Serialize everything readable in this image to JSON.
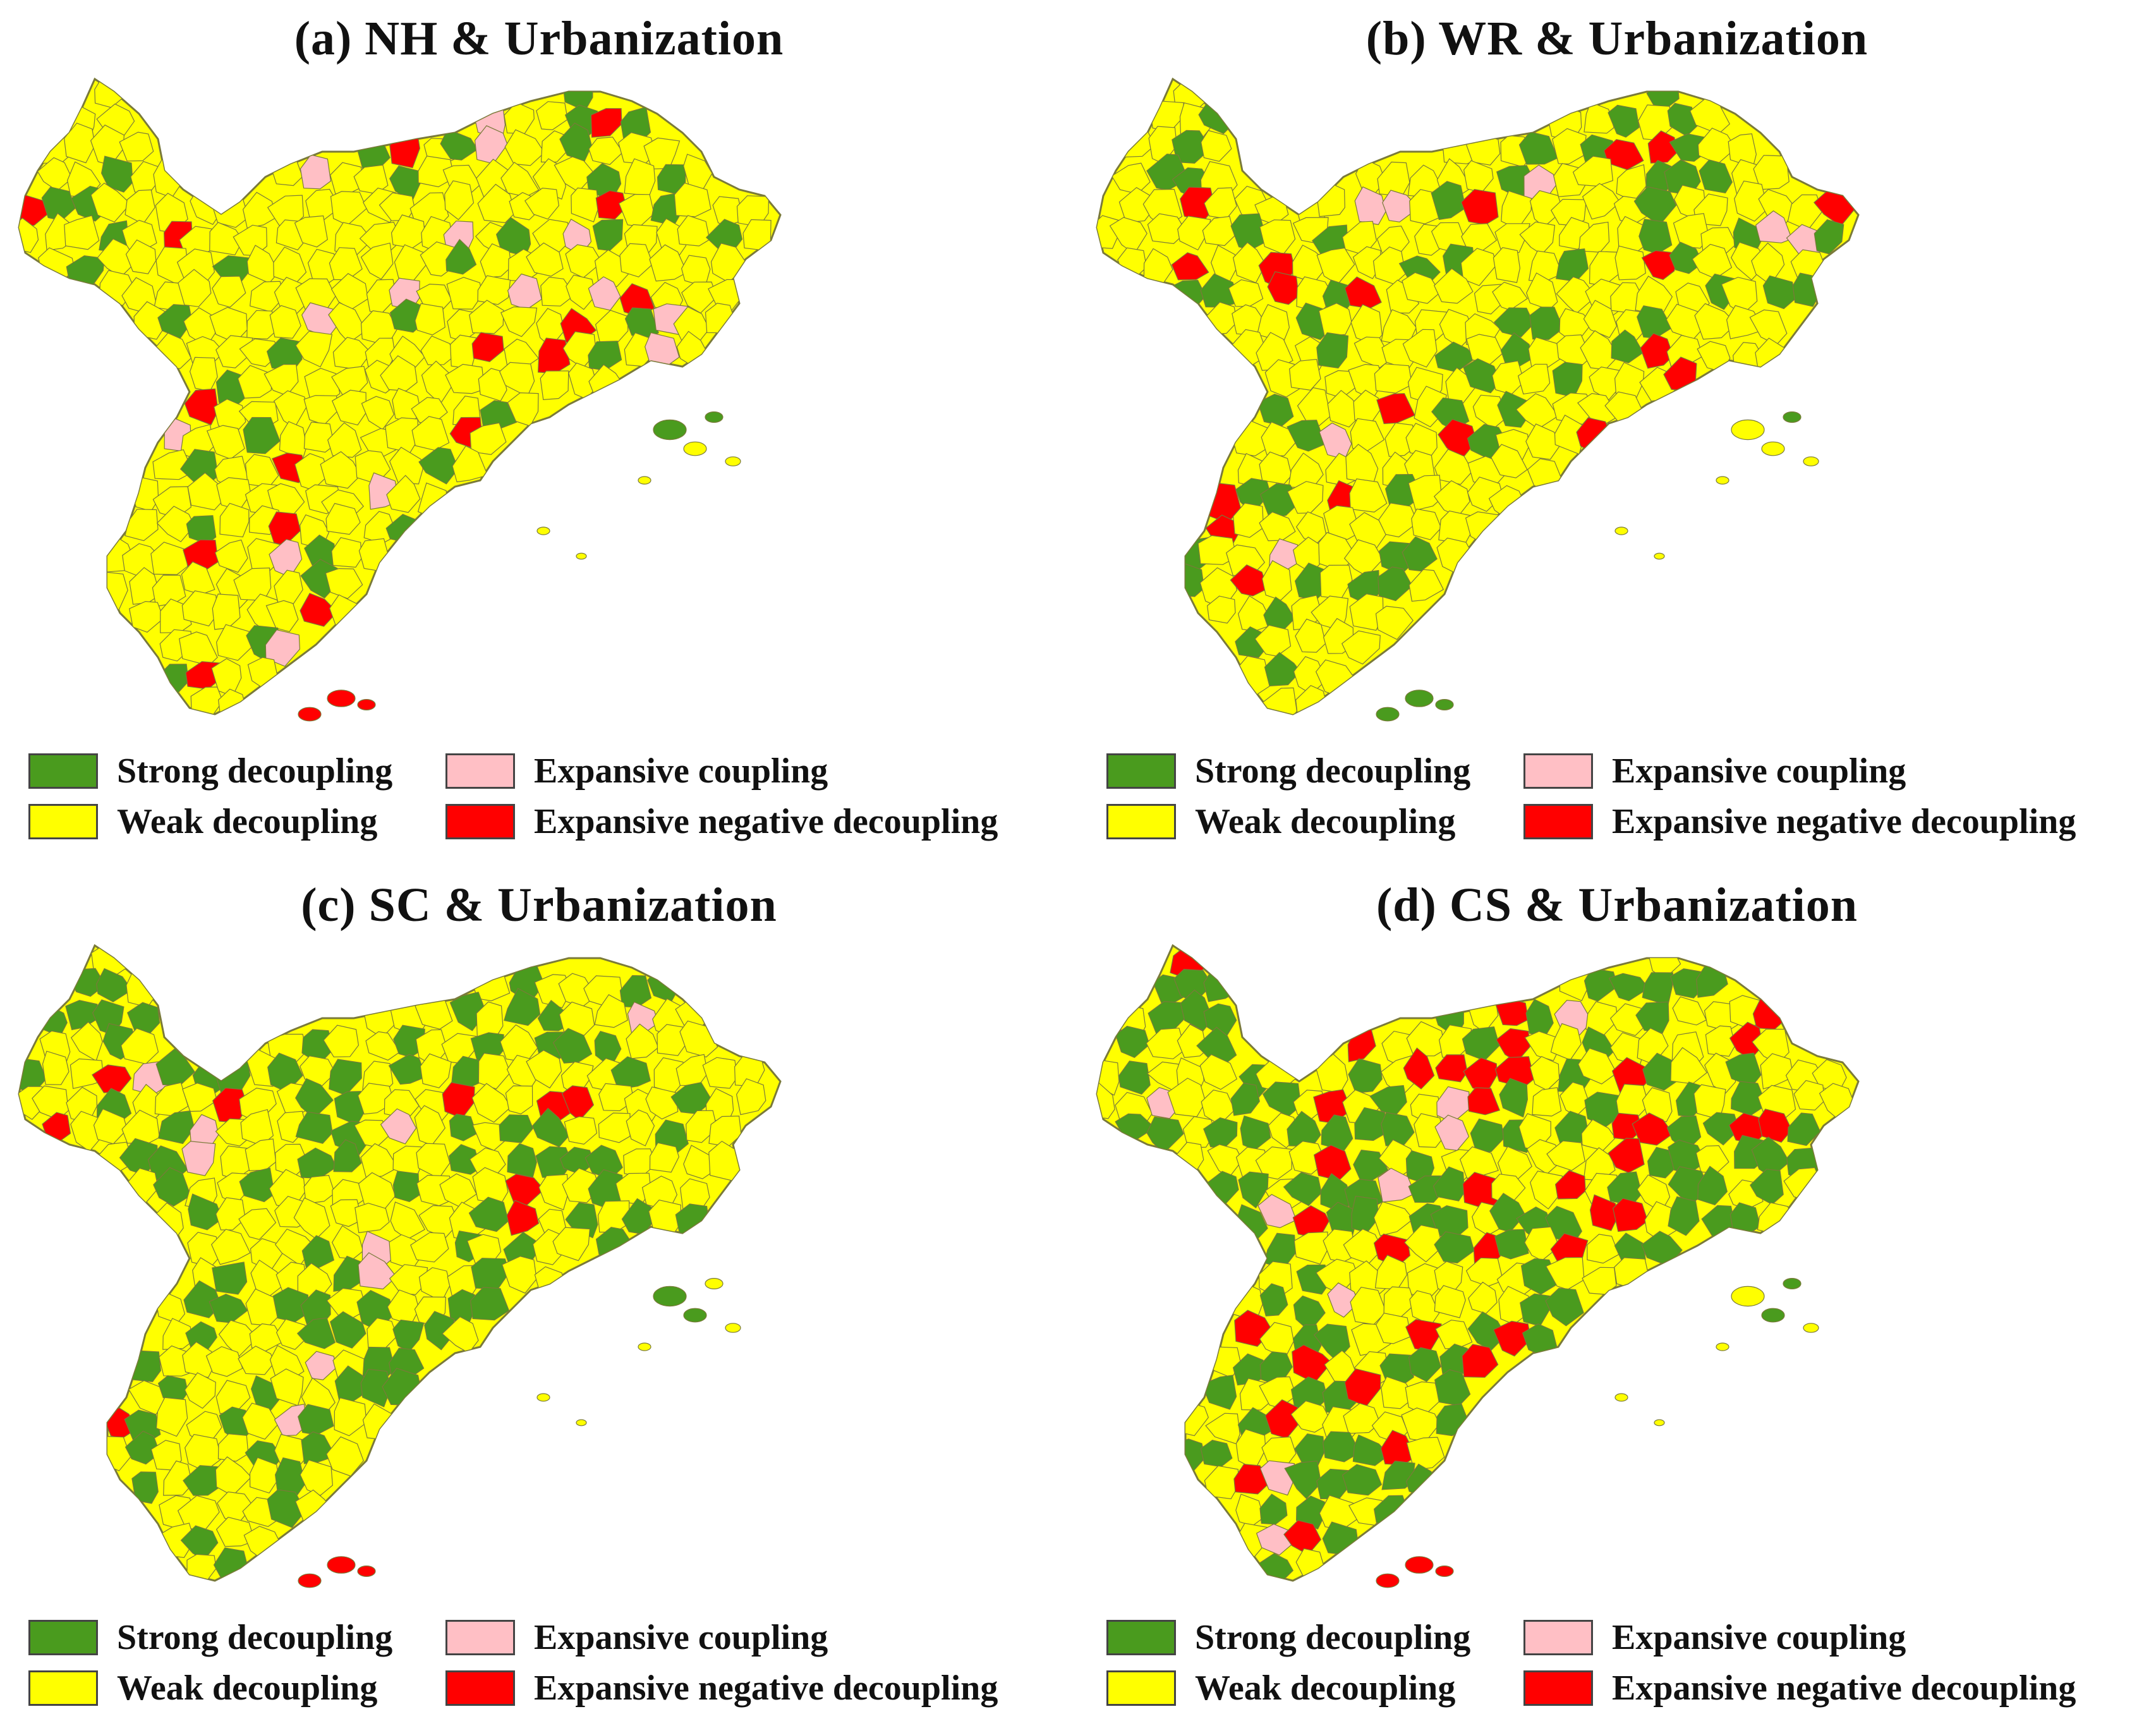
{
  "colors": {
    "strong_decoupling": "#4a9b1e",
    "weak_decoupling": "#ffff00",
    "expansive_coupling": "#ffbfc5",
    "expansive_negative_decoupling": "#ff0000",
    "boundary": "#7a7a3a"
  },
  "legend": {
    "strong_decoupling": "Strong decoupling",
    "weak_decoupling": "Weak decoupling",
    "expansive_coupling": "Expansive coupling",
    "expansive_negative_decoupling": "Expansive negative decoupling"
  },
  "panels": [
    {
      "id": "a",
      "title": "(a) NH & Urbanization",
      "dominant": "weak_decoupling"
    },
    {
      "id": "b",
      "title": "(b) WR & Urbanization",
      "dominant": "weak_decoupling"
    },
    {
      "id": "c",
      "title": "(c) SC & Urbanization",
      "dominant": "weak_decoupling"
    },
    {
      "id": "d",
      "title": "(d) CS & Urbanization",
      "dominant": "mixed"
    }
  ]
}
